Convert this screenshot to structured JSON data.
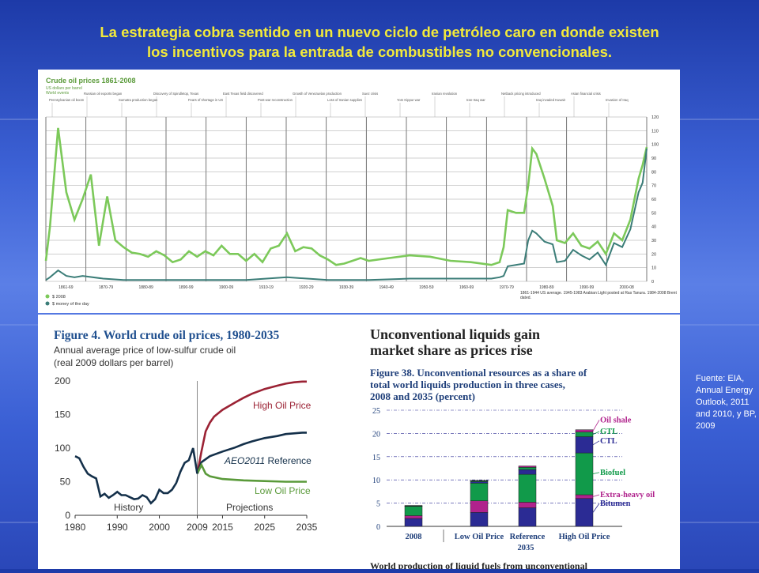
{
  "slide": {
    "title_line1": "La estrategia cobra sentido en un nuevo ciclo de petróleo caro en donde existen",
    "title_line2": "los incentivos para la entrada de combustibles no convencionales.",
    "source": "Fuente: EIA, Annual Energy Outlook, 2011 and 2010, y BP, 2009"
  },
  "chart_data": [
    {
      "id": "bp-crude-oil-prices",
      "type": "line",
      "title": "Crude oil prices 1861-2008",
      "subtitle": "US dollars per barrel",
      "events_label": "World events",
      "events": [
        "Pennsylvanian oil boom",
        "Russian oil exports began",
        "Sumatra production began",
        "Discovery of Spindletop, Texas",
        "Fears of shortage in US",
        "East Texas field discovered",
        "Post-war reconstruction",
        "Growth of Venezuelan production",
        "Loss of Iranian supplies",
        "Suez crisis",
        "Yom Kippur war",
        "Iranian revolution",
        "Iran-Iraq war",
        "Netback pricing introduced",
        "Iraq invaded Kuwait",
        "Asian financial crisis",
        "Invasion of Iraq"
      ],
      "ylim": [
        0,
        120
      ],
      "yticks": [
        0,
        10,
        20,
        30,
        40,
        50,
        60,
        70,
        80,
        90,
        100,
        110,
        120
      ],
      "xticks": [
        "1861-69",
        "1870-79",
        "1880-89",
        "1890-99",
        "1900-09",
        "1910-19",
        "1920-29",
        "1930-39",
        "1940-49",
        "1950-59",
        "1960-69",
        "1970-79",
        "1980-89",
        "1990-99",
        "2000-08"
      ],
      "legend": [
        "$ 2008",
        "$ money of the day"
      ],
      "notes": "1861-1944 US average. 1945-1983 Arabian Light posted at Ras Tanura. 1984-2008 Brent dated.",
      "series": [
        {
          "name": "$ 2008",
          "color": "#7cc95a",
          "x": [
            1861,
            1862,
            1864,
            1866,
            1868,
            1870,
            1872,
            1874,
            1876,
            1878,
            1880,
            1882,
            1884,
            1886,
            1888,
            1890,
            1892,
            1894,
            1896,
            1898,
            1900,
            1902,
            1904,
            1906,
            1908,
            1910,
            1912,
            1914,
            1916,
            1918,
            1920,
            1922,
            1924,
            1926,
            1928,
            1930,
            1932,
            1934,
            1936,
            1938,
            1940,
            1945,
            1950,
            1955,
            1960,
            1965,
            1970,
            1972,
            1973,
            1974,
            1976,
            1978,
            1979,
            1980,
            1981,
            1983,
            1985,
            1986,
            1988,
            1990,
            1992,
            1994,
            1996,
            1998,
            2000,
            2002,
            2004,
            2006,
            2007,
            2008
          ],
          "y": [
            15,
            40,
            112,
            65,
            45,
            60,
            78,
            26,
            62,
            30,
            25,
            21,
            20,
            18,
            22,
            19,
            14,
            16,
            22,
            18,
            22,
            19,
            26,
            20,
            20,
            15,
            20,
            14,
            24,
            26,
            35,
            22,
            25,
            24,
            19,
            16,
            12,
            13,
            15,
            17,
            15,
            17,
            19,
            18,
            15,
            14,
            12,
            14,
            25,
            52,
            50,
            50,
            70,
            97,
            93,
            75,
            55,
            30,
            28,
            35,
            26,
            24,
            29,
            20,
            35,
            30,
            45,
            75,
            85,
            98
          ]
        },
        {
          "name": "$ money of the day",
          "color": "#3b7d78",
          "x": [
            1861,
            1862,
            1864,
            1866,
            1868,
            1870,
            1875,
            1880,
            1890,
            1900,
            1910,
            1920,
            1930,
            1940,
            1950,
            1960,
            1970,
            1972,
            1973,
            1974,
            1978,
            1979,
            1980,
            1981,
            1983,
            1985,
            1986,
            1988,
            1990,
            1992,
            1994,
            1996,
            1998,
            2000,
            2002,
            2004,
            2006,
            2007,
            2008
          ],
          "y": [
            1,
            3,
            8,
            4,
            3,
            4,
            2,
            1,
            1,
            1,
            1,
            3,
            1,
            1,
            2,
            2,
            2,
            3,
            4,
            11,
            13,
            30,
            37,
            35,
            29,
            27,
            14,
            15,
            23,
            19,
            16,
            21,
            12,
            28,
            25,
            38,
            65,
            72,
            97
          ]
        }
      ]
    },
    {
      "id": "eia-figure-4",
      "type": "line",
      "title": "Figure 4. World crude oil prices, 1980-2035",
      "subtitle_line1": "Annual average price of low-sulfur crude oil",
      "subtitle_line2": "(real 2009 dollars per barrel)",
      "ylim": [
        0,
        200
      ],
      "yticks": [
        0,
        50,
        100,
        150,
        200
      ],
      "xlim": [
        1980,
        2035
      ],
      "xticks": [
        1980,
        1990,
        2000,
        2009,
        2015,
        2025,
        2035
      ],
      "labels": {
        "history": "History",
        "projections": "Projections",
        "high": "High Oil Price",
        "reference_italic": "AEO2011",
        "reference": " Reference",
        "low": "Low Oil Price"
      },
      "history": {
        "color": "#14304a",
        "x": [
          1980,
          1981,
          1982,
          1983,
          1984,
          1985,
          1986,
          1987,
          1988,
          1989,
          1990,
          1991,
          1992,
          1993,
          1994,
          1995,
          1996,
          1997,
          1998,
          1999,
          2000,
          2001,
          2002,
          2003,
          2004,
          2005,
          2006,
          2007,
          2008,
          2009
        ],
        "y": [
          88,
          85,
          72,
          62,
          58,
          55,
          28,
          32,
          26,
          30,
          35,
          30,
          30,
          27,
          24,
          25,
          30,
          27,
          18,
          24,
          38,
          33,
          33,
          38,
          48,
          65,
          78,
          82,
          100,
          62
        ]
      },
      "series": [
        {
          "name": "High Oil Price",
          "color": "#9b2234",
          "x": [
            2009,
            2010,
            2011,
            2012,
            2013,
            2015,
            2018,
            2020,
            2022,
            2025,
            2028,
            2030,
            2032,
            2034,
            2035
          ],
          "y": [
            62,
            95,
            125,
            138,
            147,
            157,
            168,
            175,
            181,
            188,
            193,
            196,
            198,
            199,
            199
          ]
        },
        {
          "name": "AEO2011 Reference",
          "color": "#14304a",
          "x": [
            2009,
            2010,
            2012,
            2015,
            2018,
            2020,
            2022,
            2025,
            2028,
            2030,
            2032,
            2034,
            2035
          ],
          "y": [
            62,
            79,
            88,
            95,
            101,
            106,
            110,
            115,
            118,
            121,
            122,
            123,
            123
          ]
        },
        {
          "name": "Low Oil Price",
          "color": "#5a9a3a",
          "x": [
            2009,
            2010,
            2011,
            2012,
            2015,
            2020,
            2025,
            2030,
            2035
          ],
          "y": [
            62,
            75,
            62,
            58,
            54,
            52,
            51,
            50,
            50
          ]
        }
      ]
    },
    {
      "id": "eia-figure-38",
      "type": "bar",
      "stacked": true,
      "headline_line1": "Unconventional liquids gain",
      "headline_line2": "market share as prices rise",
      "title_line1": "Figure 38. Unconventional resources as a share of",
      "title_line2": "total world liquids production in three cases,",
      "title_line3": "2008 and 2035 (percent)",
      "footer": "World production of liquid fuels from unconventional",
      "ylim": [
        0,
        25
      ],
      "yticks": [
        0,
        5,
        10,
        15,
        20,
        25
      ],
      "categories": [
        "2008",
        "Low Oil Price",
        "Reference",
        "High Oil Price"
      ],
      "group_label": "2035",
      "series": [
        {
          "name": "Bitumen",
          "color": "#2b2b94",
          "values": [
            1.7,
            3.0,
            4.0,
            6.0
          ]
        },
        {
          "name": "Extra-heavy oil",
          "color": "#b0228c",
          "values": [
            0.6,
            2.5,
            1.2,
            0.8
          ]
        },
        {
          "name": "Biofuel",
          "color": "#119a4a",
          "values": [
            2.0,
            3.8,
            6.0,
            9.0
          ]
        },
        {
          "name": "CTL",
          "color": "#2b2b94",
          "values": [
            0.1,
            0.3,
            1.0,
            3.5
          ]
        },
        {
          "name": "GTL",
          "color": "#119a4a",
          "values": [
            0.1,
            0.2,
            0.5,
            1.0
          ]
        },
        {
          "name": "Oil shale",
          "color": "#b0228c",
          "values": [
            0.0,
            0.1,
            0.3,
            0.5
          ]
        }
      ]
    }
  ]
}
